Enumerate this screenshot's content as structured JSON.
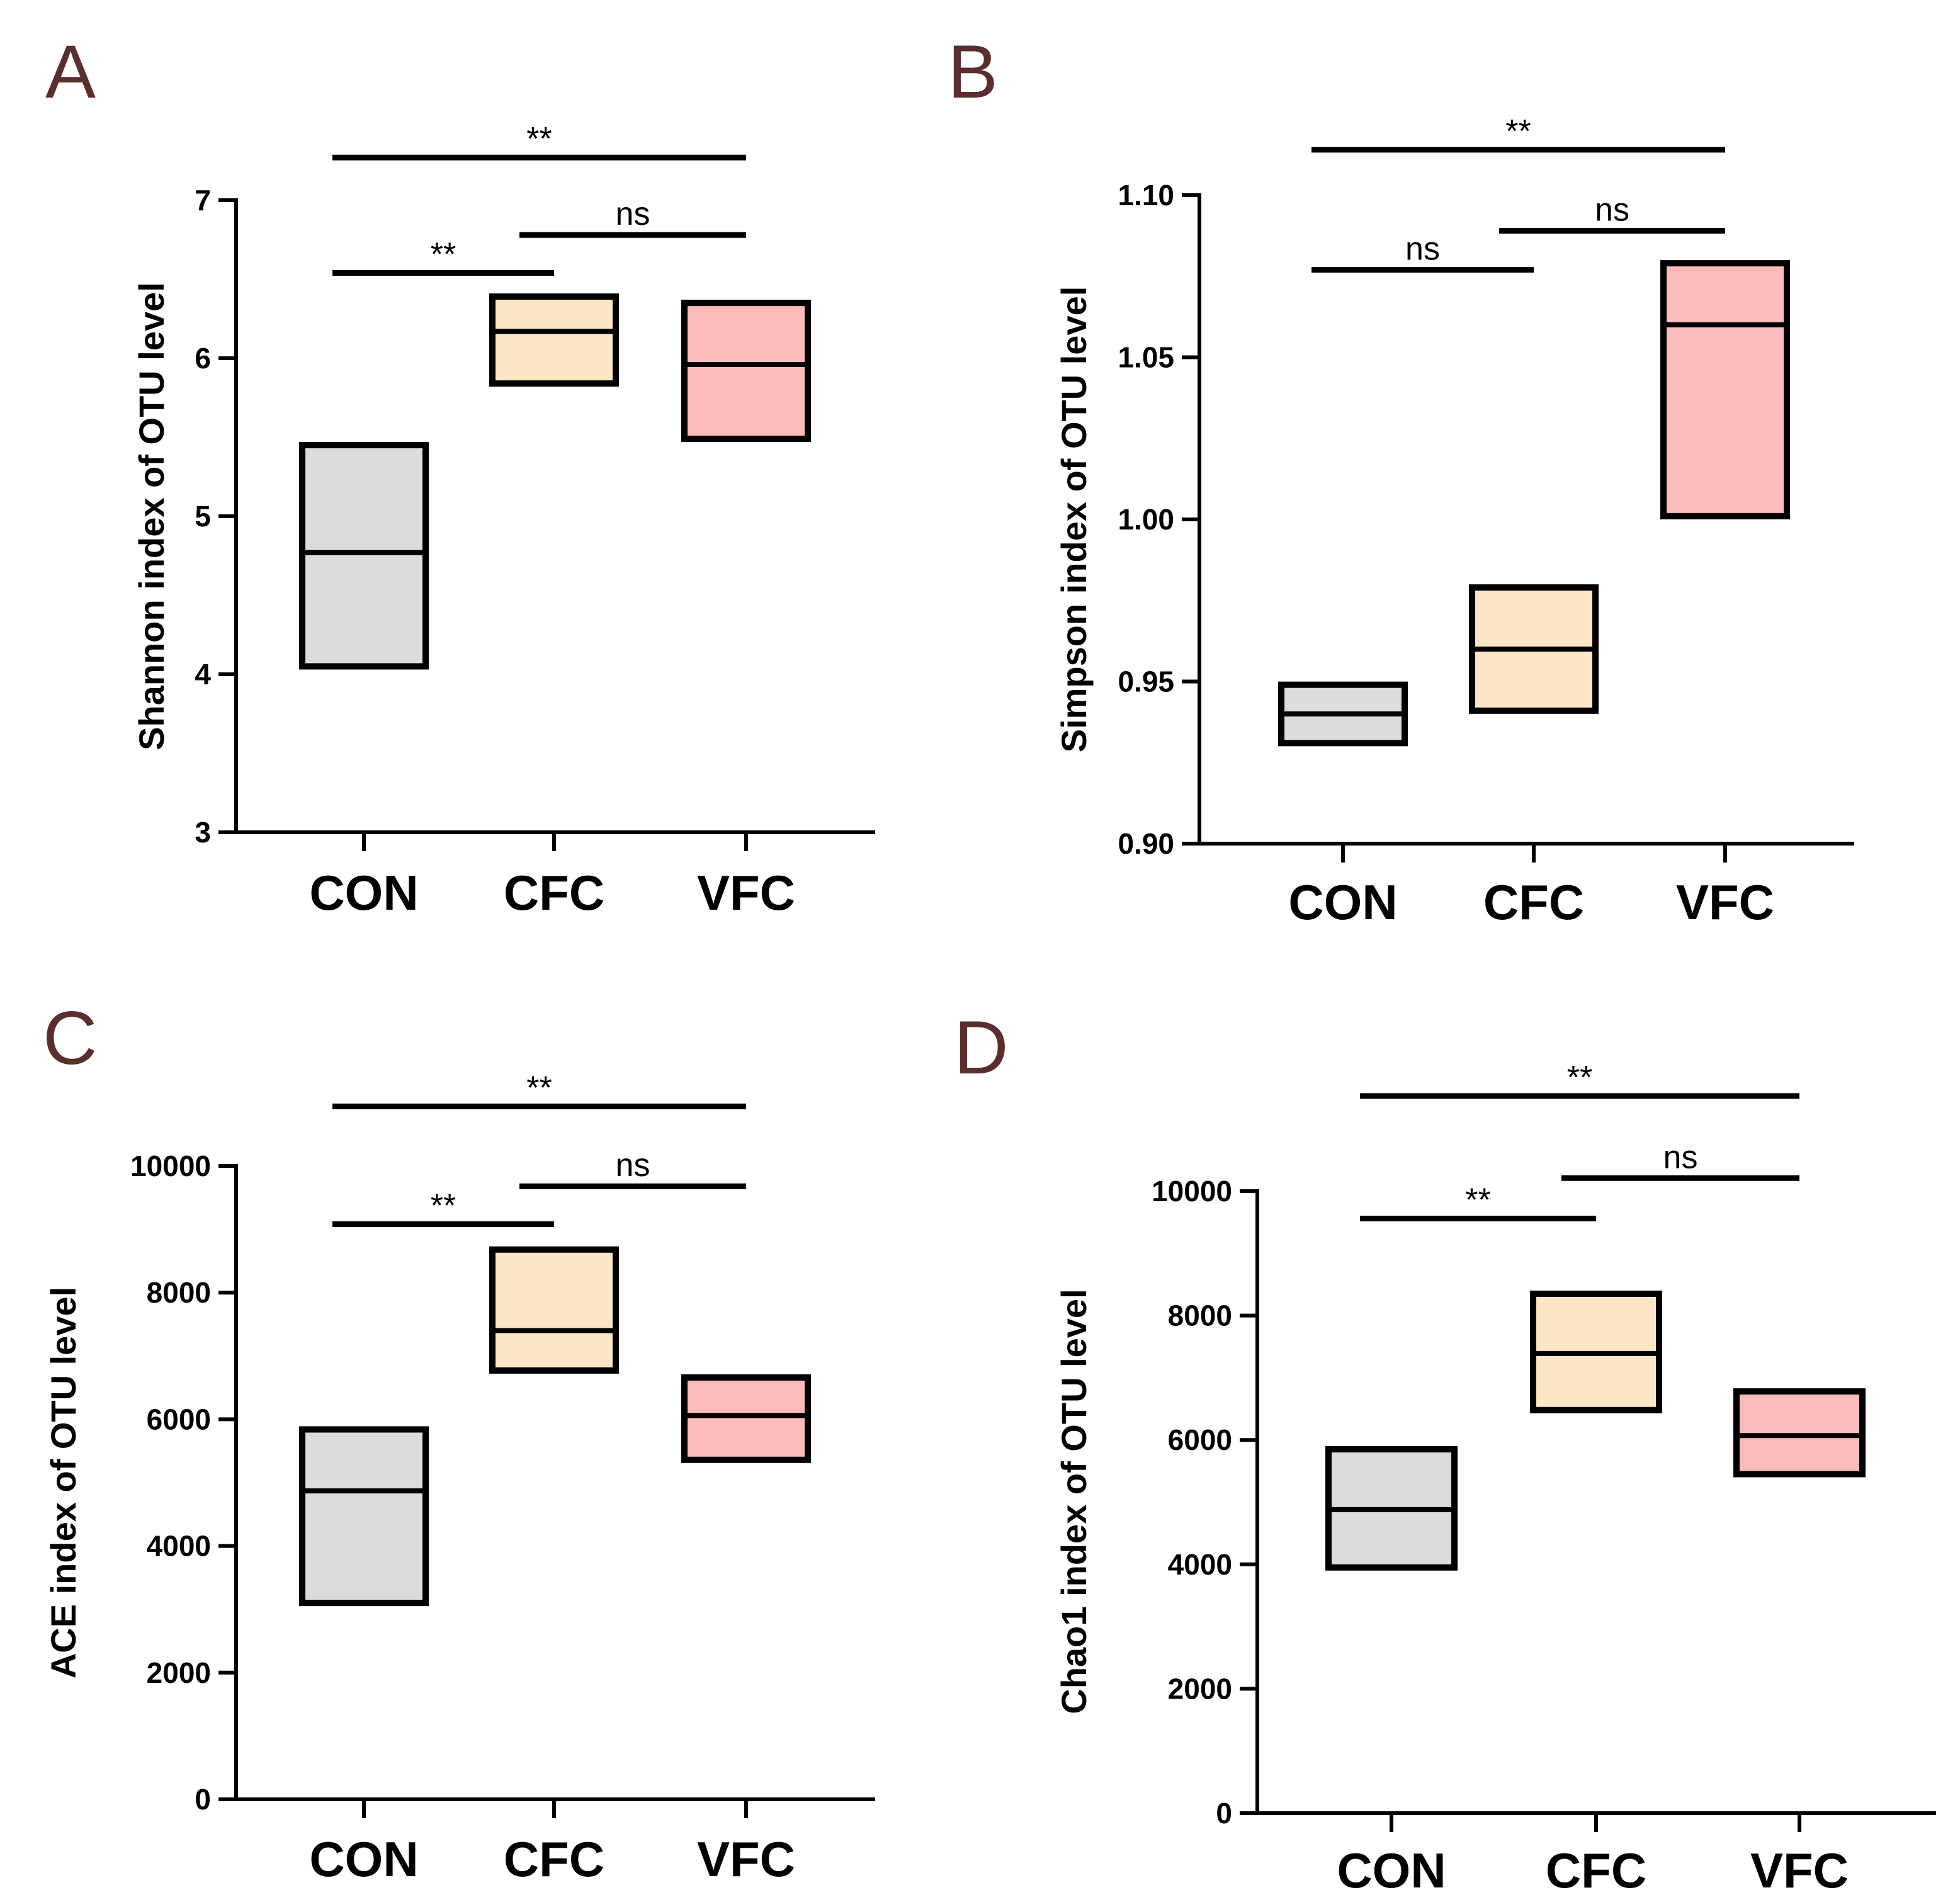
{
  "colors": {
    "CON": "#dcdcdc",
    "CFC": "#fde6c6",
    "VFC": "#fcbcbc"
  },
  "chart_data": [
    {
      "type": "box",
      "panel": "A",
      "ylabel": "Shannon index of OTU level",
      "ylim": [
        3,
        7
      ],
      "yticks": [
        3,
        4,
        5,
        6,
        7
      ],
      "yticklabels": [
        "3",
        "4",
        "5",
        "6",
        "7"
      ],
      "categories": [
        "CON",
        "CFC",
        "VFC"
      ],
      "boxes": [
        {
          "group": "CON",
          "low": 4.05,
          "median": 4.77,
          "high": 5.45
        },
        {
          "group": "CFC",
          "low": 5.84,
          "median": 6.17,
          "high": 6.39
        },
        {
          "group": "VFC",
          "low": 5.49,
          "median": 5.96,
          "high": 6.35
        }
      ],
      "comparisons": [
        {
          "from": "CON",
          "to": "VFC",
          "label": "**",
          "level": 7.27
        },
        {
          "from": "CON",
          "to": "CFC",
          "label": "**",
          "level": 6.54
        },
        {
          "from": "CFC",
          "to": "VFC",
          "label": "ns",
          "level": 6.78
        }
      ]
    },
    {
      "type": "box",
      "panel": "B",
      "ylabel": "Simpson index of OTU level",
      "ylim": [
        0.9,
        1.1
      ],
      "yticks": [
        0.9,
        0.95,
        1.0,
        1.05,
        1.1
      ],
      "yticklabels": [
        "0.90",
        "0.95",
        "1.00",
        "1.05",
        "1.10"
      ],
      "categories": [
        "CON",
        "CFC",
        "VFC"
      ],
      "boxes": [
        {
          "group": "CON",
          "low": 0.931,
          "median": 0.94,
          "high": 0.949
        },
        {
          "group": "CFC",
          "low": 0.941,
          "median": 0.96,
          "high": 0.979
        },
        {
          "group": "VFC",
          "low": 1.001,
          "median": 1.06,
          "high": 1.079
        }
      ],
      "comparisons": [
        {
          "from": "CON",
          "to": "VFC",
          "label": "**",
          "level": 1.114
        },
        {
          "from": "CON",
          "to": "CFC",
          "label": "ns",
          "level": 1.077
        },
        {
          "from": "CFC",
          "to": "VFC",
          "label": "ns",
          "level": 1.089
        }
      ]
    },
    {
      "type": "box",
      "panel": "C",
      "ylabel": "ACE index of OTU level",
      "ylim": [
        0,
        10000
      ],
      "yticks": [
        0,
        2000,
        4000,
        6000,
        8000,
        10000
      ],
      "yticklabels": [
        "0",
        "2000",
        "4000",
        "6000",
        "8000",
        "10000"
      ],
      "categories": [
        "CON",
        "CFC",
        "VFC"
      ],
      "boxes": [
        {
          "group": "CON",
          "low": 3100,
          "median": 4870,
          "high": 5840
        },
        {
          "group": "CFC",
          "low": 6770,
          "median": 7400,
          "high": 8680
        },
        {
          "group": "VFC",
          "low": 5360,
          "median": 6060,
          "high": 6660
        }
      ],
      "comparisons": [
        {
          "from": "CON",
          "to": "VFC",
          "label": "**",
          "level": 10940
        },
        {
          "from": "CON",
          "to": "CFC",
          "label": "**",
          "level": 9080
        },
        {
          "from": "CFC",
          "to": "VFC",
          "label": "ns",
          "level": 9680
        }
      ]
    },
    {
      "type": "box",
      "panel": "D",
      "ylabel": "Chao1 index of OTU level",
      "ylim": [
        0,
        10000
      ],
      "yticks": [
        0,
        2000,
        4000,
        6000,
        8000,
        10000
      ],
      "yticklabels": [
        "0",
        "2000",
        "4000",
        "6000",
        "8000",
        "10000"
      ],
      "categories": [
        "CON",
        "CFC",
        "VFC"
      ],
      "boxes": [
        {
          "group": "CON",
          "low": 3950,
          "median": 4880,
          "high": 5850
        },
        {
          "group": "CFC",
          "low": 6480,
          "median": 7390,
          "high": 8350
        },
        {
          "group": "VFC",
          "low": 5450,
          "median": 6070,
          "high": 6780
        }
      ],
      "comparisons": [
        {
          "from": "CON",
          "to": "VFC",
          "label": "**",
          "level": 11530
        },
        {
          "from": "CON",
          "to": "CFC",
          "label": "**",
          "level": 9560
        },
        {
          "from": "CFC",
          "to": "VFC",
          "label": "ns",
          "level": 10210
        }
      ]
    }
  ]
}
